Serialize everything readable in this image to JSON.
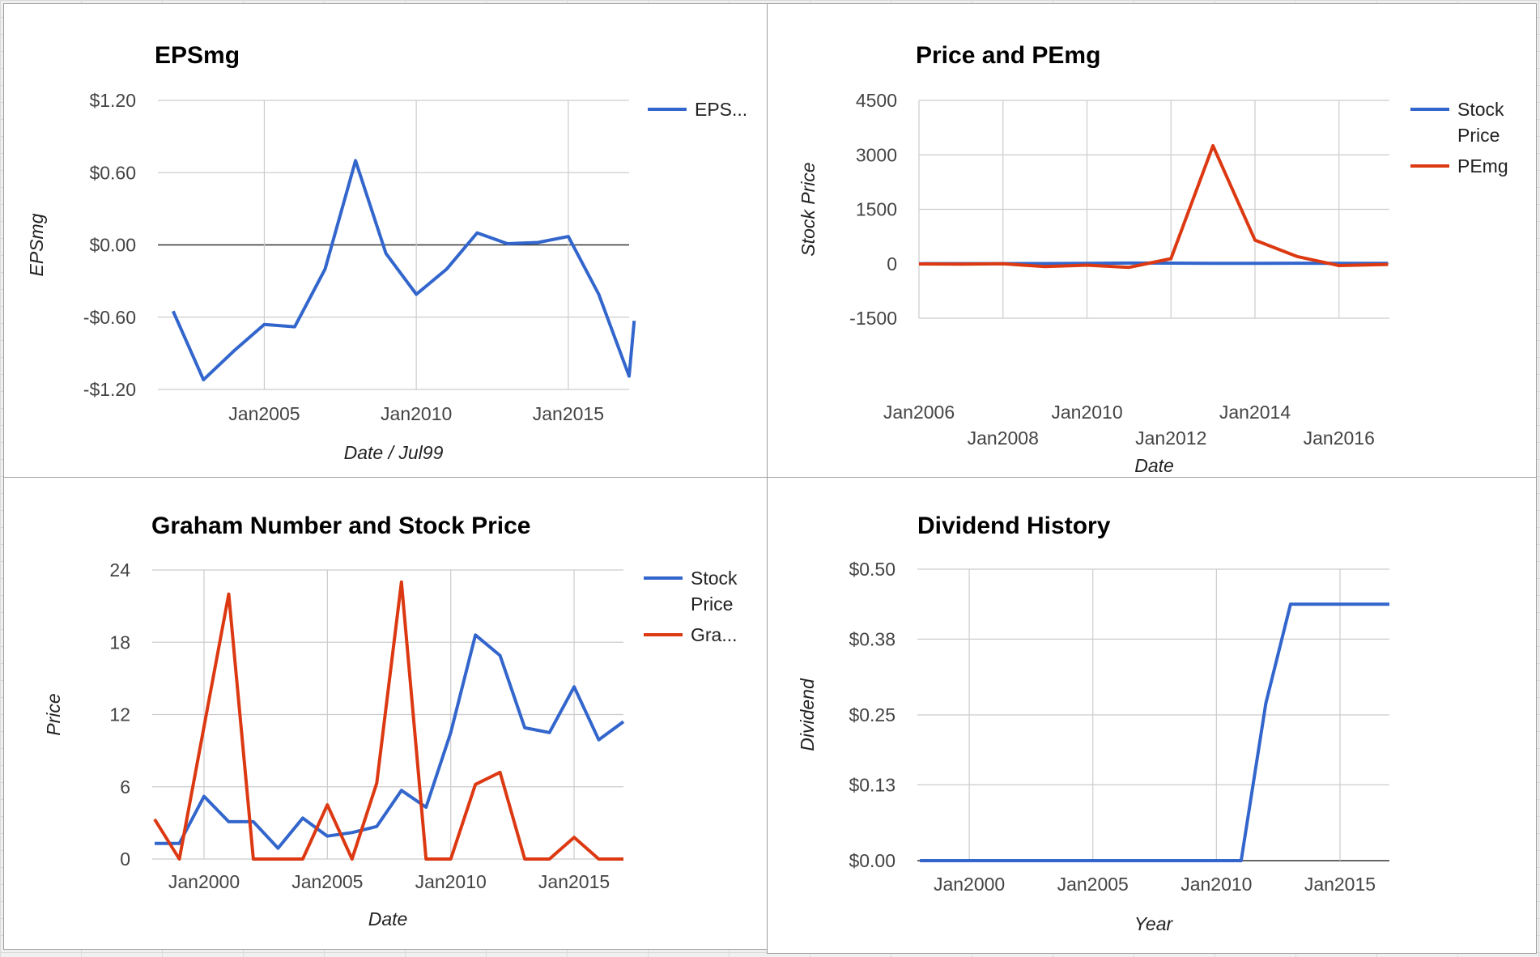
{
  "chart_data": [
    {
      "type": "line",
      "title": "EPSmg",
      "xlabel": "Date / Jul99",
      "ylabel": "EPSmg",
      "x_ticks": [
        "Jan2005",
        "Jan2010",
        "Jan2015"
      ],
      "y_ticks": [
        "$1.20",
        "$0.60",
        "$0.00",
        "-$0.60",
        "-$1.20"
      ],
      "ylim": [
        -1.2,
        1.2
      ],
      "xlim": [
        2001.5,
        2017.0
      ],
      "grid": true,
      "zero_line": true,
      "legend_position": "right",
      "series": [
        {
          "name": "EPS...",
          "color": "#3366cc",
          "x": [
            "2002-01",
            "2003-01",
            "2004-01",
            "2005-01",
            "2006-01",
            "2007-01",
            "2008-01",
            "2009-01",
            "2010-01",
            "2011-01",
            "2012-01",
            "2013-01",
            "2014-01",
            "2015-01",
            "2016-01",
            "2017-01",
            "2017-03"
          ],
          "values": [
            -0.55,
            -1.12,
            -0.88,
            -0.66,
            -0.68,
            -0.2,
            0.7,
            -0.07,
            -0.41,
            -0.2,
            0.1,
            0.01,
            0.02,
            0.07,
            -0.41,
            -1.09,
            -0.63
          ]
        }
      ]
    },
    {
      "type": "line",
      "title": "Price and PEmg",
      "xlabel": "Date",
      "ylabel": "Stock Price",
      "x_ticks": [
        "Jan2006",
        "Jan2008",
        "Jan2010",
        "Jan2012",
        "Jan2014",
        "Jan2016"
      ],
      "y_ticks": [
        "4500",
        "3000",
        "1500",
        "0",
        "-1500"
      ],
      "ylim": [
        -1500,
        4500
      ],
      "xlim": [
        2006.0,
        2017.2
      ],
      "grid": true,
      "legend_position": "right",
      "series": [
        {
          "name": "Stock Price",
          "color": "#3366cc",
          "x": [
            "2006-01",
            "2007-01",
            "2008-01",
            "2009-01",
            "2010-01",
            "2011-01",
            "2012-01",
            "2013-01",
            "2014-01",
            "2015-01",
            "2016-01",
            "2017-03"
          ],
          "values": [
            2.2,
            2.5,
            3,
            5.6,
            10.5,
            18.5,
            16.8,
            10.9,
            10.5,
            14.3,
            9.9,
            11.4
          ]
        },
        {
          "name": "PEmg",
          "color": "#dc3912",
          "x": [
            "2006-01",
            "2007-01",
            "2008-01",
            "2009-01",
            "2010-01",
            "2011-01",
            "2012-01",
            "2013-01",
            "2014-01",
            "2015-01",
            "2016-01",
            "2017-03"
          ],
          "values": [
            -5,
            -10,
            0,
            -80,
            -40,
            -100,
            140,
            3250,
            650,
            200,
            -50,
            -20
          ]
        }
      ]
    },
    {
      "type": "line",
      "title": "Graham Number and Stock Price",
      "xlabel": "Date",
      "ylabel": "Price",
      "x_ticks": [
        "Jan2000",
        "Jan2005",
        "Jan2010",
        "Jan2015"
      ],
      "y_ticks": [
        "24",
        "18",
        "12",
        "6",
        "0"
      ],
      "ylim": [
        0,
        24
      ],
      "xlim": [
        1997.9,
        2017.0
      ],
      "grid": true,
      "legend_position": "right",
      "series": [
        {
          "name": "Stock Price",
          "color": "#3366cc",
          "x": [
            "1998-01",
            "1999-01",
            "2000-01",
            "2001-01",
            "2002-01",
            "2003-01",
            "2004-01",
            "2005-01",
            "2006-01",
            "2007-01",
            "2008-01",
            "2009-01",
            "2010-01",
            "2011-01",
            "2012-01",
            "2013-01",
            "2014-01",
            "2015-01",
            "2016-01",
            "2017-01"
          ],
          "values": [
            1.3,
            1.3,
            5.2,
            3.1,
            3.1,
            0.9,
            3.4,
            1.9,
            2.2,
            2.7,
            5.7,
            4.3,
            10.5,
            18.6,
            16.9,
            10.9,
            10.5,
            14.3,
            9.9,
            11.4
          ]
        },
        {
          "name": "Gra...",
          "color": "#dc3912",
          "x": [
            "1998-01",
            "1999-01",
            "2000-01",
            "2001-01",
            "2002-01",
            "2003-01",
            "2004-01",
            "2005-01",
            "2006-01",
            "2007-01",
            "2008-01",
            "2009-01",
            "2010-01",
            "2011-01",
            "2012-01",
            "2013-01",
            "2014-01",
            "2015-01",
            "2016-01",
            "2017-01"
          ],
          "values": [
            3.3,
            0,
            11,
            22,
            0,
            0,
            0,
            4.5,
            0,
            6.3,
            23,
            0,
            0,
            6.2,
            7.2,
            0,
            0,
            1.8,
            0,
            0
          ]
        }
      ]
    },
    {
      "type": "line",
      "title": "Dividend History",
      "xlabel": "Year",
      "ylabel": "Dividend",
      "x_ticks": [
        "Jan2000",
        "Jan2005",
        "Jan2010",
        "Jan2015"
      ],
      "y_ticks": [
        "$0.50",
        "$0.38",
        "$0.25",
        "$0.13",
        "$0.00"
      ],
      "ylim": [
        0,
        0.5
      ],
      "xlim": [
        1997.9,
        2017.0
      ],
      "grid": true,
      "zero_line": true,
      "legend_position": "none",
      "series": [
        {
          "color": "#3366cc",
          "x": [
            "1998-01",
            "2000-01",
            "2002-01",
            "2004-01",
            "2006-01",
            "2008-01",
            "2010-01",
            "2011-01",
            "2012-01",
            "2013-01",
            "2014-01",
            "2015-01",
            "2016-01",
            "2017-01"
          ],
          "values": [
            0,
            0,
            0,
            0,
            0,
            0,
            0,
            0,
            0.27,
            0.44,
            0.44,
            0.44,
            0.44,
            0.44
          ]
        }
      ]
    }
  ]
}
